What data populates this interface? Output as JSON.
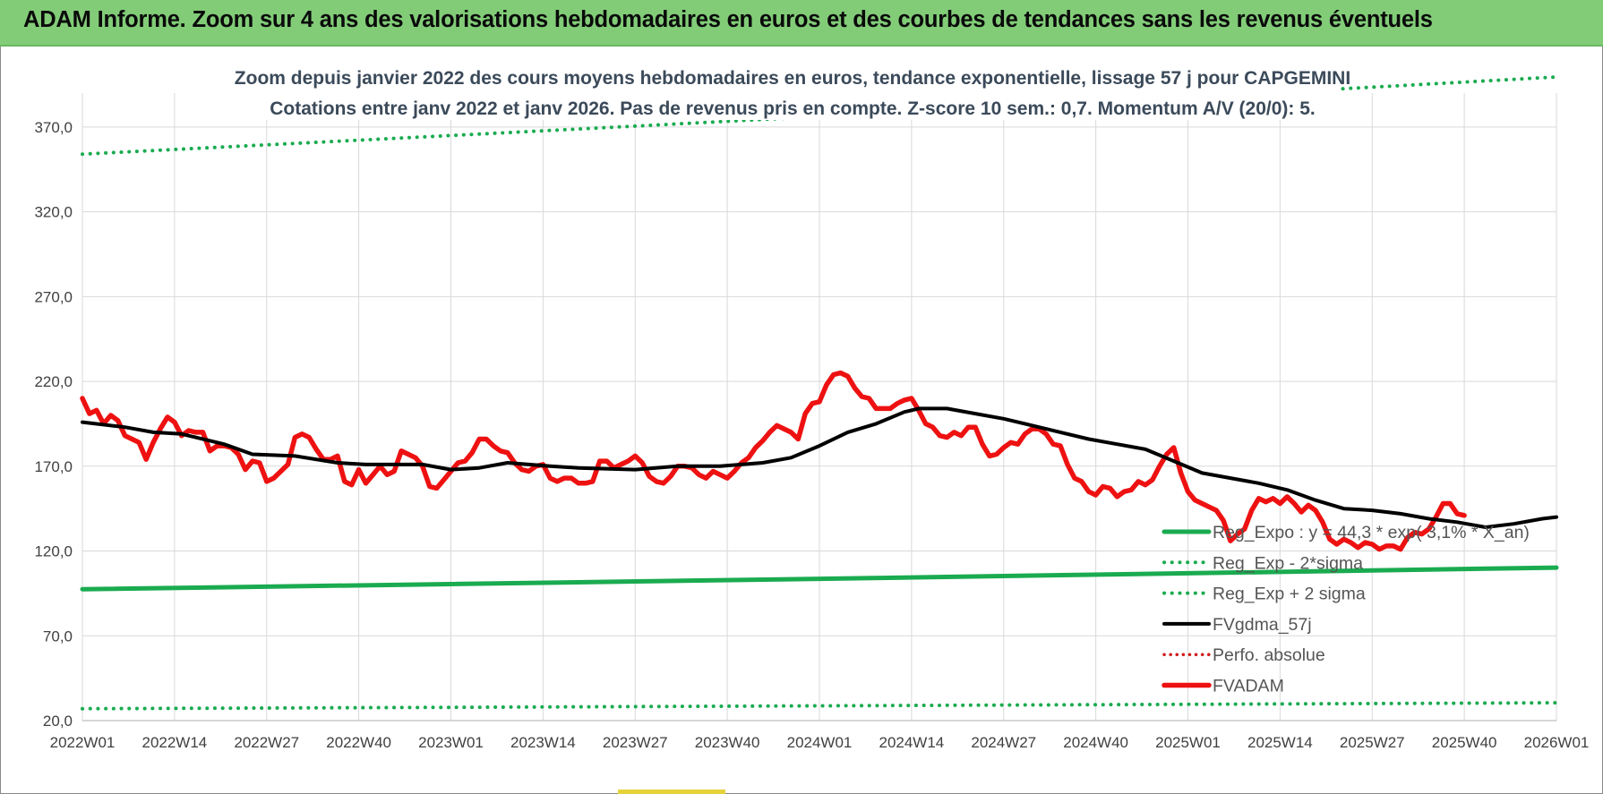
{
  "header": {
    "banner_title": "ADAM Informe. Zoom sur 4 ans des valorisations hebdomadaires en euros et des courbes de tendances sans les revenus éventuels"
  },
  "colors": {
    "banner_bg": "#82cc78",
    "reg_expo": "#1aab50",
    "sigma_bands": "#1aab50",
    "fvgdma": "#000000",
    "perfo": "#d11a1a",
    "fvadam": "#ee1111"
  },
  "chart_data": {
    "type": "line",
    "title": "Zoom depuis janvier 2022 des cours moyens hebdomadaires en euros, tendance exponentielle, lissage 57 j pour CAPGEMINI",
    "subtitle": "Cotations entre janv 2022 et janv 2026. Pas de revenus pris en compte. Z-score 10 sem.: 0,7. Momentum A/V (20/0): 5.",
    "xlabel": "",
    "ylabel": "",
    "ylim": [
      20,
      390
    ],
    "y_ticks": [
      "20,0",
      "70,0",
      "120,0",
      "170,0",
      "220,0",
      "270,0",
      "320,0",
      "370,0"
    ],
    "x_ticks": [
      "2022W01",
      "2022W14",
      "2022W27",
      "2022W40",
      "2023W01",
      "2023W14",
      "2023W27",
      "2023W40",
      "2024W01",
      "2024W14",
      "2024W27",
      "2024W40",
      "2025W01",
      "2025W14",
      "2025W27",
      "2025W40",
      "2026W01"
    ],
    "x_range_weeks": [
      0,
      208
    ],
    "grid": true,
    "legend_position": "bottom-right",
    "series": [
      {
        "name": "Reg_Expo : y = 44,3 * exp( 3,1% * X_an)",
        "style": "solid",
        "points": [
          [
            0,
            97.5
          ],
          [
            52,
            100.5
          ],
          [
            104,
            103.6
          ],
          [
            156,
            106.9
          ],
          [
            208,
            110.2
          ]
        ]
      },
      {
        "name": "Reg_Exp - 2*sigma",
        "style": "dotted",
        "points": [
          [
            0,
            27.0
          ],
          [
            52,
            27.8
          ],
          [
            104,
            28.7
          ],
          [
            156,
            29.6
          ],
          [
            208,
            30.5
          ]
        ]
      },
      {
        "name": "Reg_Exp + 2 sigma",
        "style": "dotted",
        "points": [
          [
            0,
            354.0
          ],
          [
            26,
            359.5
          ],
          [
            52,
            365.0
          ],
          [
            78,
            370.5
          ],
          [
            104,
            376.2
          ],
          [
            130,
            382.0
          ],
          [
            156,
            387.8
          ],
          [
            182,
            393.5
          ],
          [
            208,
            399.5
          ]
        ]
      },
      {
        "name": "FVgdma_57j",
        "style": "solid",
        "points": [
          [
            0,
            196
          ],
          [
            6,
            193
          ],
          [
            10,
            190
          ],
          [
            14,
            189
          ],
          [
            20,
            183
          ],
          [
            24,
            177
          ],
          [
            30,
            176
          ],
          [
            36,
            172
          ],
          [
            40,
            171
          ],
          [
            48,
            171
          ],
          [
            52,
            168
          ],
          [
            56,
            169
          ],
          [
            60,
            172
          ],
          [
            66,
            170
          ],
          [
            70,
            169
          ],
          [
            78,
            168
          ],
          [
            84,
            170
          ],
          [
            90,
            170
          ],
          [
            96,
            172
          ],
          [
            100,
            175
          ],
          [
            104,
            182
          ],
          [
            108,
            190
          ],
          [
            112,
            195
          ],
          [
            116,
            202
          ],
          [
            118,
            204
          ],
          [
            122,
            204
          ],
          [
            126,
            201
          ],
          [
            130,
            198
          ],
          [
            134,
            194
          ],
          [
            138,
            190
          ],
          [
            142,
            186
          ],
          [
            146,
            183
          ],
          [
            150,
            180
          ],
          [
            154,
            173
          ],
          [
            158,
            166
          ],
          [
            162,
            163
          ],
          [
            166,
            160
          ],
          [
            170,
            156
          ],
          [
            174,
            150
          ],
          [
            178,
            145
          ],
          [
            182,
            144
          ],
          [
            186,
            142
          ],
          [
            190,
            139
          ],
          [
            194,
            137
          ],
          [
            198,
            134
          ],
          [
            202,
            136
          ],
          [
            206,
            139
          ],
          [
            208,
            140
          ]
        ]
      },
      {
        "name": "Perfo. absolue",
        "style": "dotted",
        "points": []
      },
      {
        "name": "FVADAM",
        "style": "solid-thick",
        "points": [
          [
            0,
            210
          ],
          [
            1,
            201
          ],
          [
            2,
            203
          ],
          [
            3,
            195
          ],
          [
            4,
            200
          ],
          [
            5,
            197
          ],
          [
            6,
            188
          ],
          [
            7,
            186
          ],
          [
            8,
            184
          ],
          [
            9,
            174
          ],
          [
            10,
            184
          ],
          [
            11,
            192
          ],
          [
            12,
            199
          ],
          [
            13,
            196
          ],
          [
            14,
            188
          ],
          [
            15,
            191
          ],
          [
            16,
            190
          ],
          [
            17,
            190
          ],
          [
            18,
            179
          ],
          [
            19,
            182
          ],
          [
            20,
            182
          ],
          [
            21,
            181
          ],
          [
            22,
            177
          ],
          [
            23,
            168
          ],
          [
            24,
            173
          ],
          [
            25,
            172
          ],
          [
            26,
            161
          ],
          [
            27,
            163
          ],
          [
            28,
            167
          ],
          [
            29,
            171
          ],
          [
            30,
            187
          ],
          [
            31,
            189
          ],
          [
            32,
            187
          ],
          [
            33,
            180
          ],
          [
            34,
            174
          ],
          [
            35,
            174
          ],
          [
            36,
            176
          ],
          [
            37,
            161
          ],
          [
            38,
            159
          ],
          [
            39,
            168
          ],
          [
            40,
            160
          ],
          [
            41,
            165
          ],
          [
            42,
            170
          ],
          [
            43,
            165
          ],
          [
            44,
            167
          ],
          [
            45,
            179
          ],
          [
            46,
            177
          ],
          [
            47,
            175
          ],
          [
            48,
            170
          ],
          [
            49,
            158
          ],
          [
            50,
            157
          ],
          [
            51,
            162
          ],
          [
            52,
            167
          ],
          [
            53,
            172
          ],
          [
            54,
            173
          ],
          [
            55,
            178
          ],
          [
            56,
            186
          ],
          [
            57,
            186
          ],
          [
            58,
            182
          ],
          [
            59,
            179
          ],
          [
            60,
            178
          ],
          [
            61,
            172
          ],
          [
            62,
            168
          ],
          [
            63,
            167
          ],
          [
            64,
            170
          ],
          [
            65,
            171
          ],
          [
            66,
            163
          ],
          [
            67,
            161
          ],
          [
            68,
            163
          ],
          [
            69,
            163
          ],
          [
            70,
            160
          ],
          [
            71,
            160
          ],
          [
            72,
            161
          ],
          [
            73,
            173
          ],
          [
            74,
            173
          ],
          [
            75,
            169
          ],
          [
            76,
            171
          ],
          [
            77,
            173
          ],
          [
            78,
            176
          ],
          [
            79,
            172
          ],
          [
            80,
            164
          ],
          [
            81,
            161
          ],
          [
            82,
            160
          ],
          [
            83,
            164
          ],
          [
            84,
            170
          ],
          [
            85,
            170
          ],
          [
            86,
            169
          ],
          [
            87,
            165
          ],
          [
            88,
            163
          ],
          [
            89,
            167
          ],
          [
            90,
            165
          ],
          [
            91,
            163
          ],
          [
            92,
            167
          ],
          [
            93,
            172
          ],
          [
            94,
            175
          ],
          [
            95,
            181
          ],
          [
            96,
            185
          ],
          [
            97,
            190
          ],
          [
            98,
            194
          ],
          [
            99,
            192
          ],
          [
            100,
            190
          ],
          [
            101,
            186
          ],
          [
            102,
            201
          ],
          [
            103,
            207
          ],
          [
            104,
            208
          ],
          [
            105,
            218
          ],
          [
            106,
            224
          ],
          [
            107,
            225
          ],
          [
            108,
            223
          ],
          [
            109,
            216
          ],
          [
            110,
            211
          ],
          [
            111,
            210
          ],
          [
            112,
            204
          ],
          [
            113,
            204
          ],
          [
            114,
            204
          ],
          [
            115,
            207
          ],
          [
            116,
            209
          ],
          [
            117,
            210
          ],
          [
            118,
            203
          ],
          [
            119,
            195
          ],
          [
            120,
            193
          ],
          [
            121,
            188
          ],
          [
            122,
            187
          ],
          [
            123,
            190
          ],
          [
            124,
            188
          ],
          [
            125,
            193
          ],
          [
            126,
            193
          ],
          [
            127,
            183
          ],
          [
            128,
            176
          ],
          [
            129,
            177
          ],
          [
            130,
            181
          ],
          [
            131,
            184
          ],
          [
            132,
            183
          ],
          [
            133,
            189
          ],
          [
            134,
            192
          ],
          [
            135,
            192
          ],
          [
            136,
            189
          ],
          [
            137,
            183
          ],
          [
            138,
            182
          ],
          [
            139,
            171
          ],
          [
            140,
            163
          ],
          [
            141,
            161
          ],
          [
            142,
            155
          ],
          [
            143,
            153
          ],
          [
            144,
            158
          ],
          [
            145,
            157
          ],
          [
            146,
            152
          ],
          [
            147,
            155
          ],
          [
            148,
            156
          ],
          [
            149,
            161
          ],
          [
            150,
            159
          ],
          [
            151,
            162
          ],
          [
            152,
            170
          ],
          [
            153,
            177
          ],
          [
            154,
            181
          ],
          [
            155,
            166
          ],
          [
            156,
            155
          ],
          [
            157,
            150
          ],
          [
            158,
            148
          ],
          [
            159,
            146
          ],
          [
            160,
            144
          ],
          [
            161,
            138
          ],
          [
            162,
            126
          ],
          [
            163,
            130
          ],
          [
            164,
            133
          ],
          [
            165,
            144
          ],
          [
            166,
            151
          ],
          [
            167,
            149
          ],
          [
            168,
            151
          ],
          [
            169,
            148
          ],
          [
            170,
            152
          ],
          [
            171,
            148
          ],
          [
            172,
            143
          ],
          [
            173,
            147
          ],
          [
            174,
            144
          ],
          [
            175,
            137
          ],
          [
            176,
            127
          ],
          [
            177,
            124
          ],
          [
            178,
            127
          ],
          [
            179,
            125
          ],
          [
            180,
            122
          ],
          [
            181,
            125
          ],
          [
            182,
            124
          ],
          [
            183,
            121
          ],
          [
            184,
            123
          ],
          [
            185,
            123
          ],
          [
            186,
            121
          ],
          [
            187,
            128
          ],
          [
            188,
            131
          ],
          [
            189,
            130
          ],
          [
            190,
            133
          ],
          [
            191,
            140
          ],
          [
            192,
            148
          ],
          [
            193,
            148
          ],
          [
            194,
            142
          ],
          [
            195,
            141
          ]
        ]
      }
    ]
  }
}
